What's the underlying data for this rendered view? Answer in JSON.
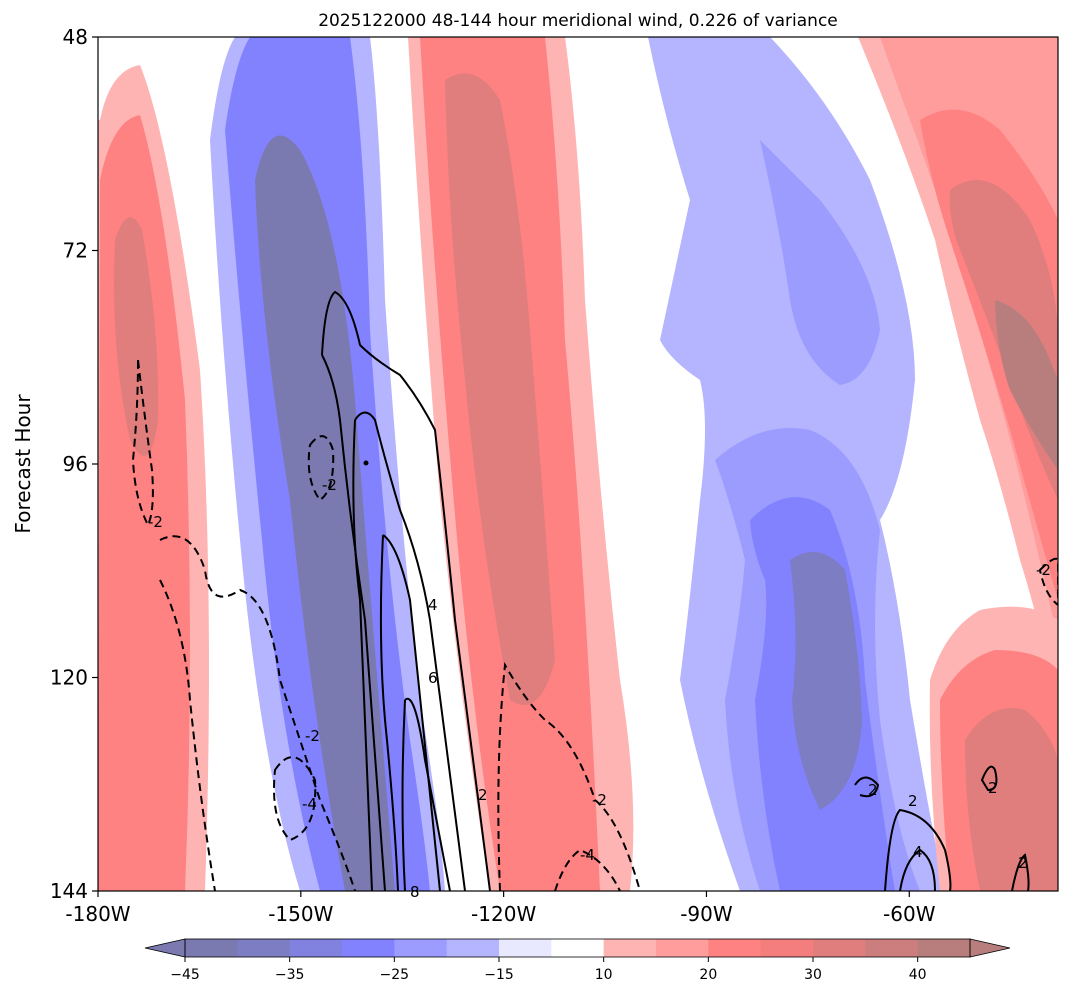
{
  "chart_data": {
    "type": "heatmap",
    "title": "2025122000 48-144 hour meridional wind, 0.226 of variance",
    "xlabel": "",
    "ylabel": "Forecast Hour",
    "x_ticks": [
      "-180W",
      "-150W",
      "-120W",
      "-90W",
      "-60W"
    ],
    "x_tick_values": [
      -180,
      -150,
      -120,
      -90,
      -60
    ],
    "xlim": [
      -180,
      -38
    ],
    "y_ticks": [
      "48",
      "72",
      "96",
      "120",
      "144"
    ],
    "y_tick_values": [
      48,
      72,
      96,
      120,
      144
    ],
    "ylim": [
      48,
      144
    ],
    "y_inverted": true,
    "colorbar": {
      "ticks": [
        "−45",
        "−35",
        "−25",
        "−15",
        "10",
        "20",
        "30",
        "40"
      ],
      "levels": [
        -45,
        -40,
        -35,
        -30,
        -25,
        -20,
        -15,
        -10,
        10,
        15,
        20,
        25,
        30,
        35,
        40,
        45
      ],
      "extend": "both",
      "colors": [
        "#7a7ab0",
        "#7d7dc4",
        "#8181e0",
        "#8282ff",
        "#9c9cff",
        "#b4b4ff",
        "#e8e8ff",
        "#ffffff",
        "#ffb4b4",
        "#ff9c9c",
        "#ff8282",
        "#f47e7e",
        "#e07e7e",
        "#cc7e7e",
        "#b87e7e"
      ]
    },
    "contour_labels": [
      "2",
      "-2",
      "4",
      "6",
      "8",
      "-4"
    ]
  }
}
